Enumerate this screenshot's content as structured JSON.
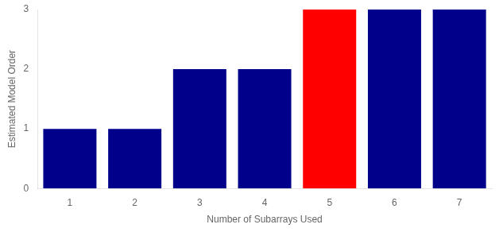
{
  "chart_data": {
    "type": "bar",
    "categories": [
      1,
      2,
      3,
      4,
      5,
      6,
      7
    ],
    "values": [
      1,
      1,
      2,
      2,
      3,
      3,
      3
    ],
    "colors": [
      "#00008B",
      "#00008B",
      "#00008B",
      "#00008B",
      "#FF0000",
      "#00008B",
      "#00008B"
    ],
    "xlabel": "Number of Subarrays Used",
    "ylabel": "Estimated Model Order",
    "ylim": [
      0,
      3
    ],
    "yticks": [
      0,
      1,
      2,
      3
    ],
    "grid": false
  }
}
